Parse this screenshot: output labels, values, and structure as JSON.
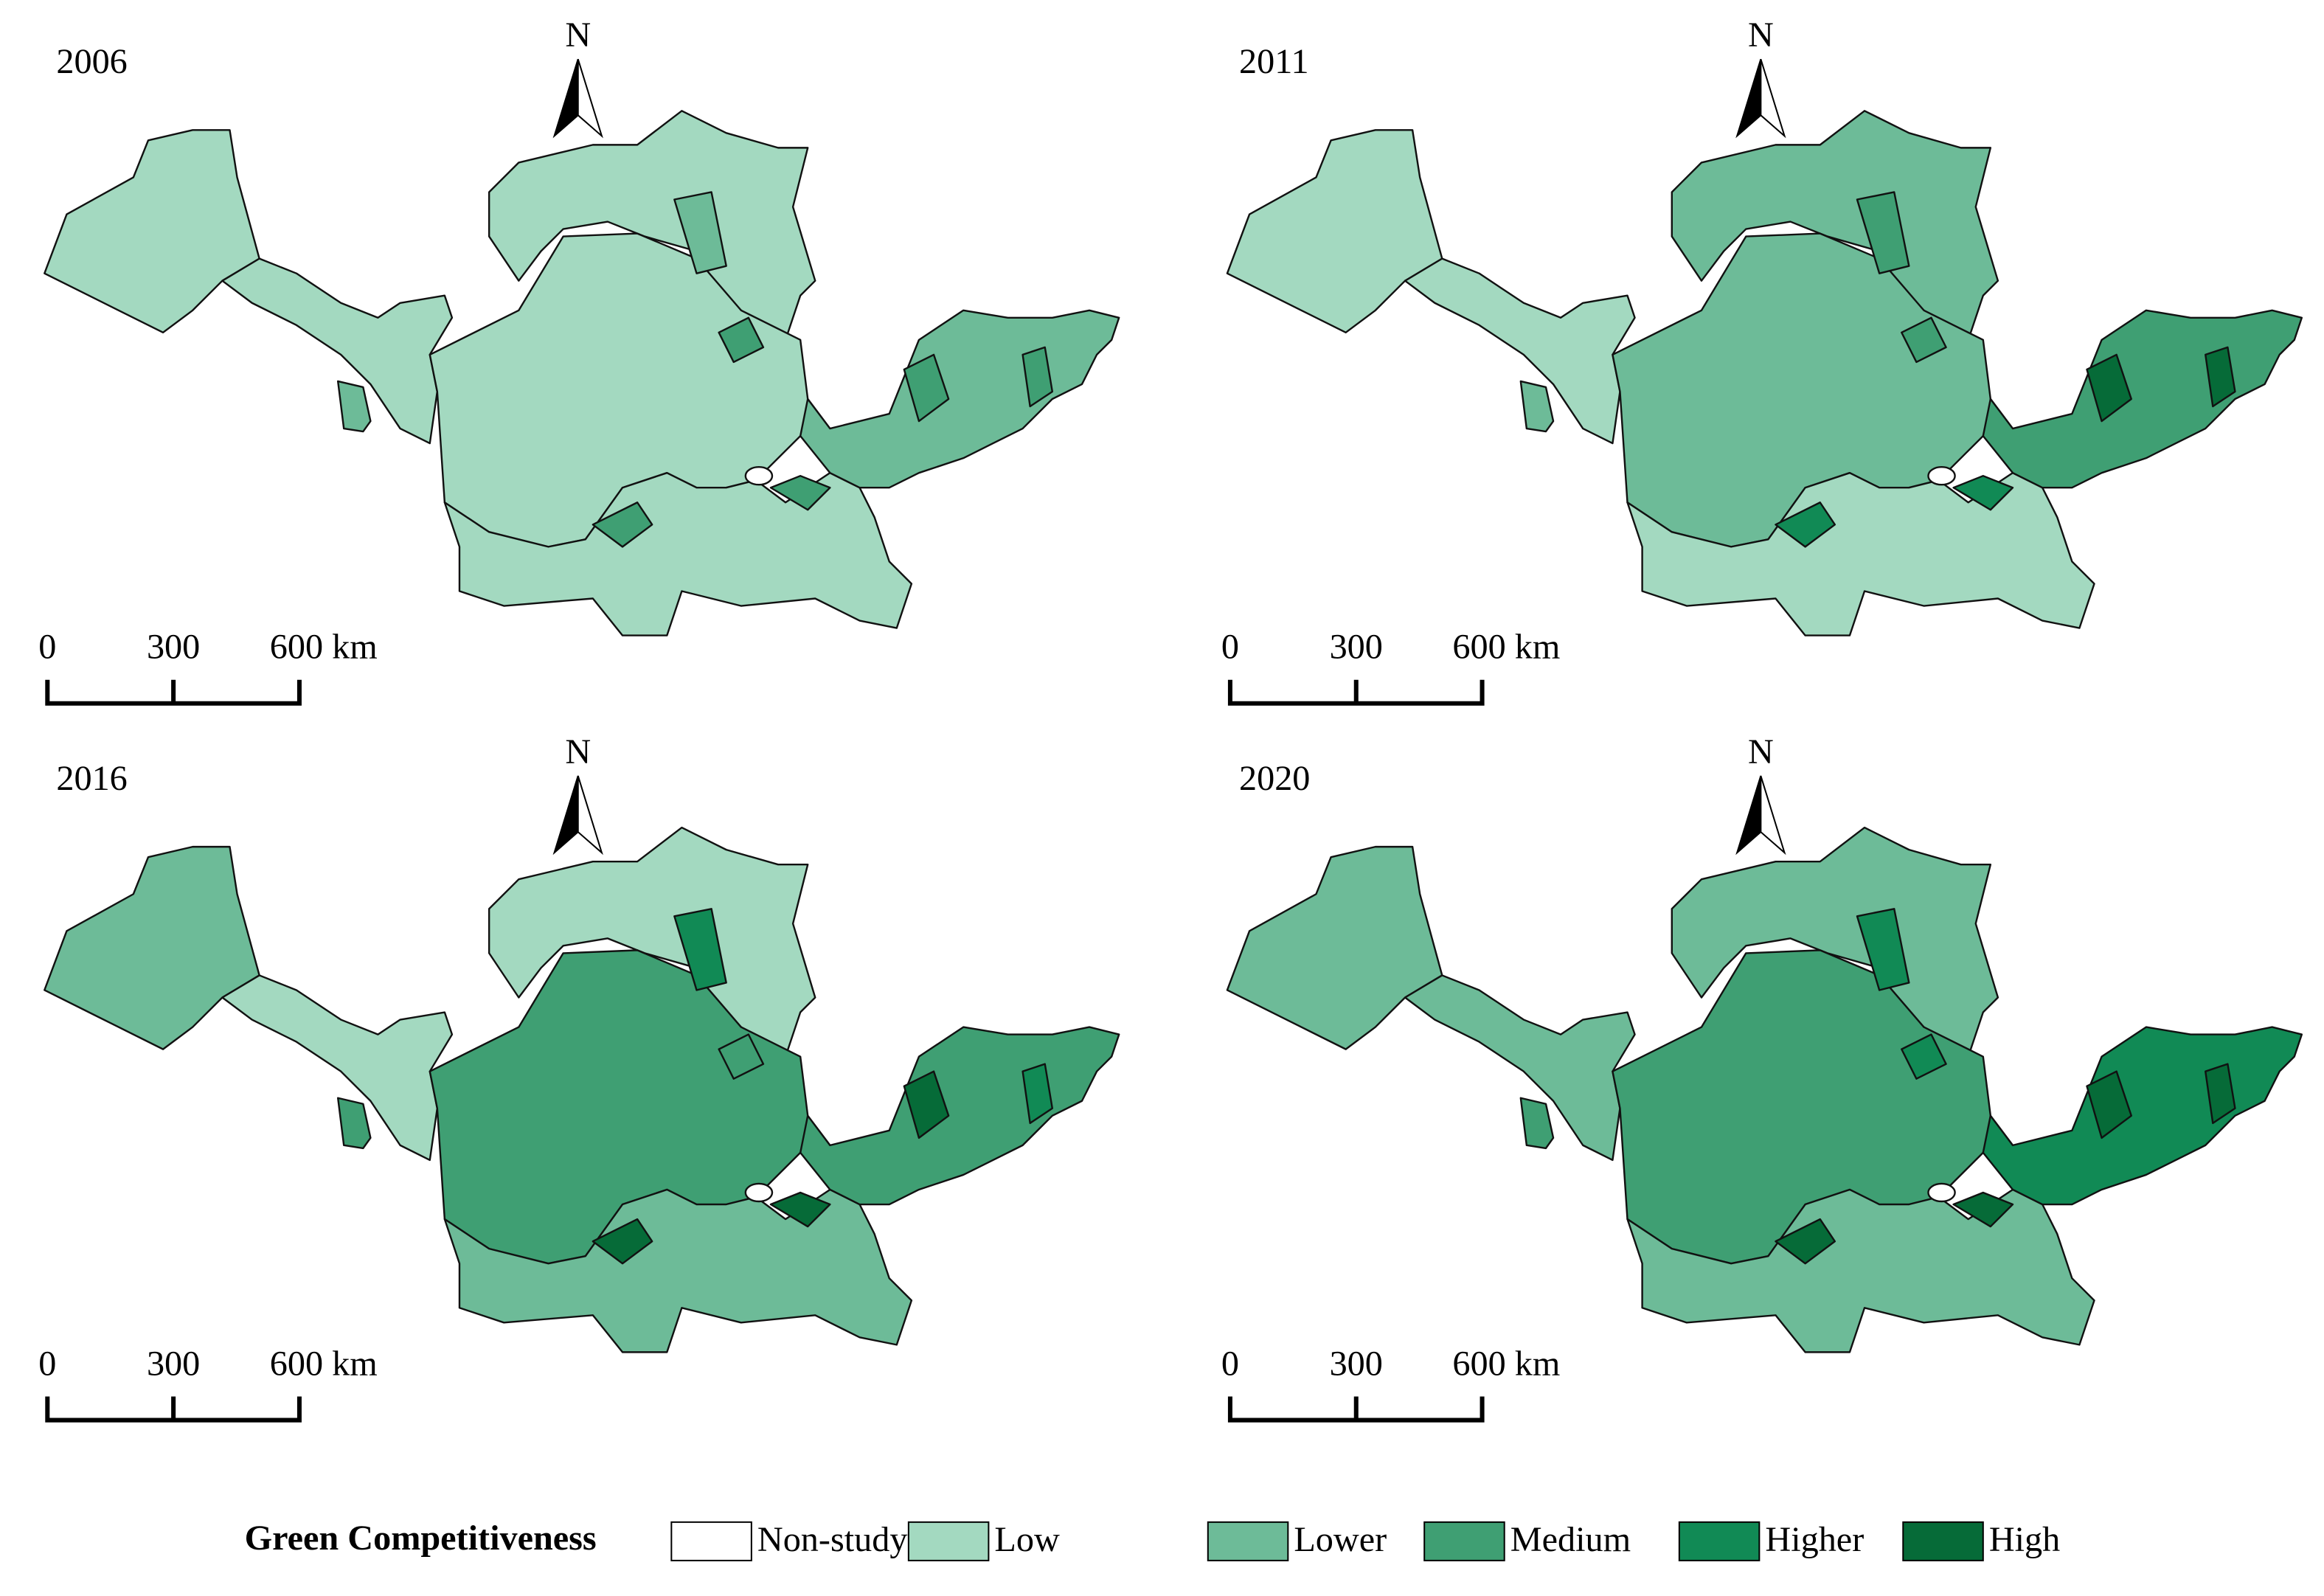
{
  "panels": [
    {
      "year": "2006"
    },
    {
      "year": "2011"
    },
    {
      "year": "2016"
    },
    {
      "year": "2020"
    }
  ],
  "north_label": "N",
  "scale_bar": {
    "labels": [
      "0",
      "300",
      "600 km"
    ]
  },
  "legend": {
    "title": "Green Competitiveness",
    "items": [
      {
        "label": "Non-study area",
        "color": "#ffffff"
      },
      {
        "label": "Low",
        "color": "#a3d9c0"
      },
      {
        "label": "Lower",
        "color": "#6dbb98"
      },
      {
        "label": "Medium",
        "color": "#3f9f73"
      },
      {
        "label": "Higher",
        "color": "#118a55"
      },
      {
        "label": "High",
        "color": "#066b38"
      }
    ]
  }
}
